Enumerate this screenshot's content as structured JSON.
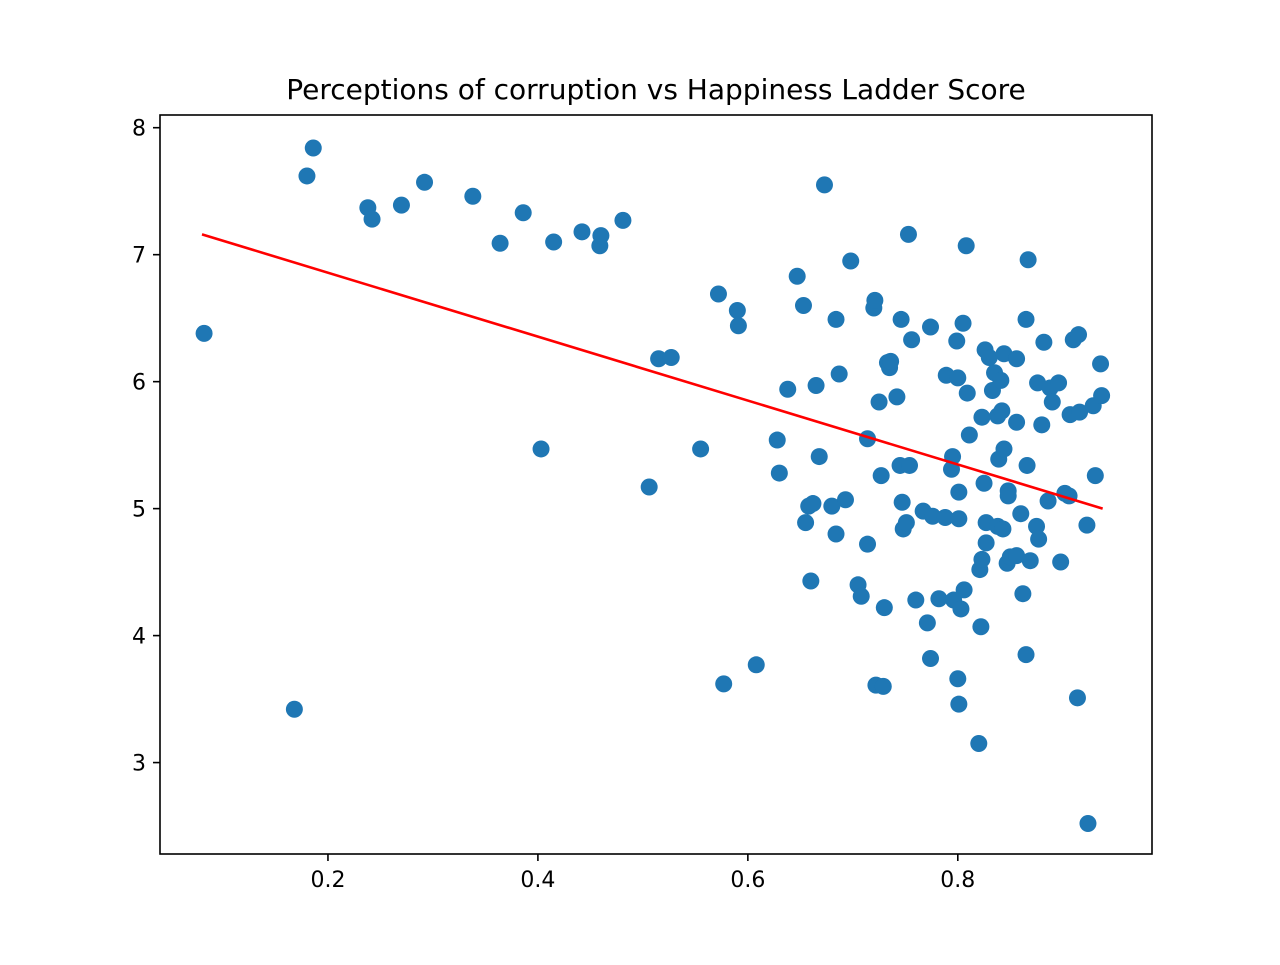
{
  "chart_data": {
    "type": "scatter",
    "title": "Perceptions of corruption vs Happiness Ladder Score",
    "xlabel": "",
    "ylabel": "",
    "xlim": [
      0.04,
      0.985
    ],
    "ylim": [
      2.28,
      8.1
    ],
    "xticks": [
      0.2,
      0.4,
      0.6,
      0.8
    ],
    "xtick_labels": [
      "0.2",
      "0.4",
      "0.6",
      "0.8"
    ],
    "yticks": [
      3,
      4,
      5,
      6,
      7,
      8
    ],
    "ytick_labels": [
      "3",
      "4",
      "5",
      "6",
      "7",
      "8"
    ],
    "grid": false,
    "legend": "none",
    "series": [
      {
        "color": "#1f77b4",
        "points": [
          [
            0.082,
            6.38
          ],
          [
            0.168,
            3.42
          ],
          [
            0.18,
            7.62
          ],
          [
            0.186,
            7.84
          ],
          [
            0.238,
            7.37
          ],
          [
            0.242,
            7.28
          ],
          [
            0.27,
            7.39
          ],
          [
            0.292,
            7.57
          ],
          [
            0.338,
            7.46
          ],
          [
            0.364,
            7.09
          ],
          [
            0.386,
            7.33
          ],
          [
            0.403,
            5.47
          ],
          [
            0.415,
            7.1
          ],
          [
            0.442,
            7.18
          ],
          [
            0.459,
            7.07
          ],
          [
            0.46,
            7.15
          ],
          [
            0.481,
            7.27
          ],
          [
            0.506,
            5.17
          ],
          [
            0.515,
            6.18
          ],
          [
            0.527,
            6.19
          ],
          [
            0.555,
            5.47
          ],
          [
            0.572,
            6.69
          ],
          [
            0.577,
            3.62
          ],
          [
            0.59,
            6.56
          ],
          [
            0.591,
            6.44
          ],
          [
            0.608,
            3.77
          ],
          [
            0.628,
            5.54
          ],
          [
            0.63,
            5.28
          ],
          [
            0.638,
            5.94
          ],
          [
            0.647,
            6.83
          ],
          [
            0.653,
            6.6
          ],
          [
            0.655,
            4.89
          ],
          [
            0.658,
            5.02
          ],
          [
            0.66,
            4.43
          ],
          [
            0.662,
            5.04
          ],
          [
            0.665,
            5.97
          ],
          [
            0.668,
            5.41
          ],
          [
            0.673,
            7.55
          ],
          [
            0.68,
            5.02
          ],
          [
            0.684,
            6.49
          ],
          [
            0.684,
            4.8
          ],
          [
            0.687,
            6.06
          ],
          [
            0.693,
            5.07
          ],
          [
            0.698,
            6.95
          ],
          [
            0.705,
            4.4
          ],
          [
            0.708,
            4.31
          ],
          [
            0.714,
            5.55
          ],
          [
            0.714,
            4.72
          ],
          [
            0.72,
            6.58
          ],
          [
            0.721,
            6.64
          ],
          [
            0.722,
            3.61
          ],
          [
            0.725,
            5.84
          ],
          [
            0.727,
            5.26
          ],
          [
            0.729,
            3.6
          ],
          [
            0.73,
            4.22
          ],
          [
            0.733,
            6.15
          ],
          [
            0.735,
            6.11
          ],
          [
            0.736,
            6.16
          ],
          [
            0.742,
            5.88
          ],
          [
            0.745,
            5.34
          ],
          [
            0.746,
            6.49
          ],
          [
            0.747,
            5.05
          ],
          [
            0.748,
            4.84
          ],
          [
            0.751,
            4.89
          ],
          [
            0.753,
            7.16
          ],
          [
            0.754,
            5.34
          ],
          [
            0.756,
            6.33
          ],
          [
            0.76,
            4.28
          ],
          [
            0.767,
            4.98
          ],
          [
            0.771,
            4.1
          ],
          [
            0.774,
            3.82
          ],
          [
            0.774,
            6.43
          ],
          [
            0.776,
            4.94
          ],
          [
            0.782,
            4.29
          ],
          [
            0.788,
            4.93
          ],
          [
            0.789,
            6.05
          ],
          [
            0.794,
            5.31
          ],
          [
            0.795,
            5.41
          ],
          [
            0.796,
            4.28
          ],
          [
            0.799,
            6.32
          ],
          [
            0.8,
            6.03
          ],
          [
            0.8,
            3.66
          ],
          [
            0.801,
            3.46
          ],
          [
            0.801,
            4.92
          ],
          [
            0.801,
            5.13
          ],
          [
            0.803,
            4.21
          ],
          [
            0.805,
            6.46
          ],
          [
            0.806,
            4.36
          ],
          [
            0.808,
            7.07
          ],
          [
            0.809,
            5.91
          ],
          [
            0.811,
            5.58
          ],
          [
            0.82,
            3.15
          ],
          [
            0.821,
            4.52
          ],
          [
            0.822,
            4.07
          ],
          [
            0.823,
            5.72
          ],
          [
            0.823,
            4.6
          ],
          [
            0.825,
            5.2
          ],
          [
            0.826,
            6.25
          ],
          [
            0.827,
            4.89
          ],
          [
            0.827,
            4.73
          ],
          [
            0.83,
            6.19
          ],
          [
            0.833,
            5.93
          ],
          [
            0.835,
            6.07
          ],
          [
            0.838,
            4.86
          ],
          [
            0.838,
            5.73
          ],
          [
            0.839,
            5.39
          ],
          [
            0.841,
            6.01
          ],
          [
            0.842,
            5.77
          ],
          [
            0.843,
            4.84
          ],
          [
            0.844,
            5.47
          ],
          [
            0.844,
            6.22
          ],
          [
            0.847,
            4.57
          ],
          [
            0.848,
            5.14
          ],
          [
            0.848,
            5.1
          ],
          [
            0.85,
            4.62
          ],
          [
            0.856,
            6.18
          ],
          [
            0.856,
            5.68
          ],
          [
            0.856,
            4.63
          ],
          [
            0.86,
            4.96
          ],
          [
            0.862,
            4.33
          ],
          [
            0.865,
            3.85
          ],
          [
            0.865,
            6.49
          ],
          [
            0.866,
            5.34
          ],
          [
            0.867,
            6.96
          ],
          [
            0.869,
            4.59
          ],
          [
            0.875,
            4.86
          ],
          [
            0.876,
            5.99
          ],
          [
            0.877,
            4.76
          ],
          [
            0.88,
            5.66
          ],
          [
            0.882,
            6.31
          ],
          [
            0.886,
            5.06
          ],
          [
            0.888,
            5.95
          ],
          [
            0.89,
            5.84
          ],
          [
            0.896,
            5.99
          ],
          [
            0.898,
            4.58
          ],
          [
            0.902,
            5.12
          ],
          [
            0.906,
            5.1
          ],
          [
            0.907,
            5.74
          ],
          [
            0.91,
            6.33
          ],
          [
            0.914,
            3.51
          ],
          [
            0.915,
            6.37
          ],
          [
            0.916,
            5.76
          ],
          [
            0.923,
            4.87
          ],
          [
            0.924,
            2.52
          ],
          [
            0.929,
            5.81
          ],
          [
            0.931,
            5.26
          ],
          [
            0.936,
            6.14
          ],
          [
            0.937,
            5.89
          ]
        ]
      },
      {
        "type": "line",
        "color": "#ff0000",
        "x": [
          0.08,
          0.938
        ],
        "y": [
          7.16,
          5.0
        ]
      }
    ]
  }
}
